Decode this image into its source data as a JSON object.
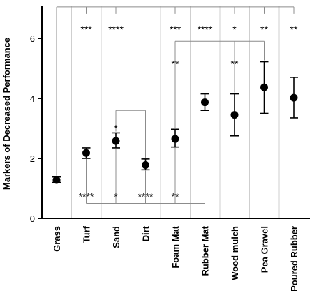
{
  "chart_data": {
    "type": "scatter",
    "ylabel": "Markers of Decreased Performance",
    "ylim": [
      0,
      7.2
    ],
    "yticks": [
      "0",
      "2",
      "4",
      "6"
    ],
    "ytick_values": [
      0,
      2,
      4,
      6
    ],
    "categories": [
      "Grass",
      "Turf",
      "Sand",
      "Dirt",
      "Foam Mat",
      "Rubber Mat",
      "Wood mulch",
      "Pea Gravel",
      "Poured Rubber"
    ],
    "means": [
      1.28,
      2.18,
      2.58,
      1.78,
      2.65,
      3.87,
      3.45,
      4.37,
      4.02
    ],
    "err_low": [
      1.2,
      2.0,
      2.35,
      1.62,
      2.38,
      3.6,
      2.75,
      3.5,
      3.35
    ],
    "err_high": [
      1.38,
      2.35,
      2.85,
      1.98,
      2.97,
      4.15,
      4.15,
      5.22,
      4.7
    ],
    "grid": "vertical lines between categories",
    "comparisons": [
      {
        "group": "vs Grass",
        "bracket_y": 7.05,
        "marks": [
          {
            "category": "Turf",
            "label": "***"
          },
          {
            "category": "Sand",
            "label": "****"
          },
          {
            "category": "Foam Mat",
            "label": "***"
          },
          {
            "category": "Rubber Mat",
            "label": "****"
          },
          {
            "category": "Wood mulch",
            "label": "*"
          },
          {
            "category": "Pea Gravel",
            "label": "**"
          },
          {
            "category": "Poured Rubber",
            "label": "**"
          }
        ]
      },
      {
        "group": "vs Foam Mat",
        "bracket_y": 5.9,
        "marks": [
          {
            "category": "Foam Mat",
            "label": "**"
          },
          {
            "category": "Wood mulch",
            "label": "**"
          },
          {
            "category": "Pea Gravel",
            "label": ""
          }
        ]
      },
      {
        "group": "Sand vs Dirt",
        "bracket_y": 3.6,
        "marks": [
          {
            "category": "Sand",
            "label": "*"
          },
          {
            "category": "Dirt",
            "label": ""
          }
        ]
      },
      {
        "group": "vs Rubber Mat",
        "bracket_y": 0.5,
        "marks": [
          {
            "category": "Turf",
            "label": "****"
          },
          {
            "category": "Sand",
            "label": "*"
          },
          {
            "category": "Dirt",
            "label": "****"
          },
          {
            "category": "Foam Mat",
            "label": "**"
          },
          {
            "category": "Rubber Mat",
            "label": ""
          }
        ]
      }
    ]
  }
}
